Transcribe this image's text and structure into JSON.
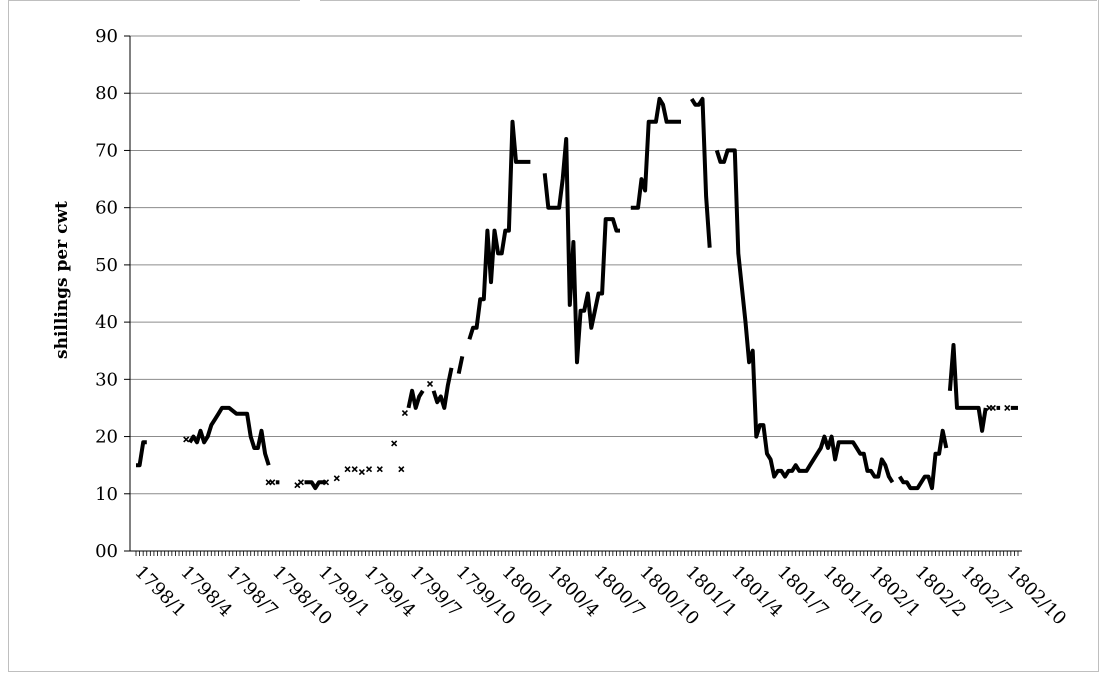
{
  "chart_data": {
    "type": "line",
    "title": "",
    "xlabel": "",
    "ylabel": "shillings per cwt",
    "ylim": [
      0,
      90
    ],
    "y_ticks": [
      "00",
      "10",
      "20",
      "30",
      "40",
      "50",
      "60",
      "70",
      "80",
      "90"
    ],
    "x_tick_labels": [
      "1798/1",
      "1798/4",
      "1798/7",
      "1798/10",
      "1799/1",
      "1799/4",
      "1799/7",
      "1799/10",
      "1800/1",
      "1800/4",
      "1800/7",
      "1800/10",
      "1801/1",
      "1801/4",
      "1801/7",
      "1801/10",
      "1802/1",
      "1802/2",
      "1802/7",
      "1802/10"
    ],
    "grid": "horizontal",
    "legend": "none",
    "colors": {
      "line": "#000000",
      "grid": "#8c8c8c"
    },
    "segments": [
      [
        [
          0,
          15
        ],
        [
          1,
          15
        ],
        [
          2,
          19
        ],
        [
          3,
          19
        ]
      ],
      [
        [
          15,
          19
        ],
        [
          16,
          20
        ],
        [
          17,
          19
        ],
        [
          18,
          21
        ],
        [
          19,
          19
        ],
        [
          20,
          20
        ],
        [
          21,
          22
        ],
        [
          22,
          23
        ],
        [
          23,
          24
        ],
        [
          24,
          25
        ],
        [
          25,
          25
        ],
        [
          26,
          25
        ],
        [
          28,
          24
        ],
        [
          29,
          24
        ],
        [
          30,
          24
        ],
        [
          31,
          24
        ],
        [
          32,
          20
        ],
        [
          33,
          18
        ],
        [
          34,
          18
        ],
        [
          35,
          21
        ],
        [
          36,
          17
        ],
        [
          37,
          15
        ]
      ],
      [
        [
          39,
          12
        ],
        [
          40,
          12
        ]
      ],
      [
        [
          47,
          12
        ],
        [
          48,
          12
        ],
        [
          49,
          12
        ],
        [
          50,
          11
        ],
        [
          51,
          12
        ],
        [
          52,
          12
        ],
        [
          53,
          12
        ]
      ],
      [
        [
          76,
          25
        ],
        [
          77,
          28
        ],
        [
          78,
          25
        ],
        [
          79,
          27
        ],
        [
          80,
          28
        ]
      ],
      [
        [
          83,
          28
        ],
        [
          84,
          26
        ],
        [
          85,
          27
        ],
        [
          86,
          25
        ],
        [
          87,
          29
        ],
        [
          88,
          32
        ]
      ],
      [
        [
          90,
          31
        ],
        [
          91,
          34
        ]
      ],
      [
        [
          93,
          37
        ],
        [
          94,
          39
        ],
        [
          95,
          39
        ],
        [
          96,
          44
        ],
        [
          97,
          44
        ],
        [
          98,
          56
        ],
        [
          99,
          47
        ],
        [
          100,
          56
        ],
        [
          101,
          52
        ],
        [
          102,
          52
        ],
        [
          103,
          56
        ],
        [
          104,
          56
        ],
        [
          105,
          75
        ],
        [
          106,
          68
        ],
        [
          107,
          68
        ],
        [
          108,
          68
        ],
        [
          109,
          68
        ],
        [
          110,
          68
        ]
      ],
      [
        [
          114,
          66
        ],
        [
          115,
          60
        ],
        [
          116,
          60
        ],
        [
          117,
          60
        ],
        [
          118,
          60
        ],
        [
          119,
          65
        ],
        [
          120,
          72
        ],
        [
          121,
          43
        ],
        [
          122,
          54
        ],
        [
          123,
          33
        ],
        [
          124,
          42
        ],
        [
          125,
          42
        ],
        [
          126,
          45
        ],
        [
          127,
          39
        ],
        [
          128,
          42
        ],
        [
          129,
          45
        ],
        [
          130,
          45
        ],
        [
          131,
          58
        ],
        [
          132,
          58
        ],
        [
          133,
          58
        ],
        [
          134,
          56
        ],
        [
          135,
          56
        ]
      ],
      [
        [
          138,
          60
        ],
        [
          139,
          60
        ],
        [
          140,
          60
        ],
        [
          141,
          65
        ],
        [
          142,
          63
        ],
        [
          143,
          75
        ],
        [
          144,
          75
        ],
        [
          145,
          75
        ],
        [
          146,
          79
        ],
        [
          147,
          78
        ],
        [
          148,
          75
        ],
        [
          149,
          75
        ],
        [
          150,
          75
        ],
        [
          151,
          75
        ],
        [
          152,
          75
        ]
      ],
      [
        [
          155,
          79
        ],
        [
          156,
          78
        ],
        [
          157,
          78
        ],
        [
          158,
          79
        ],
        [
          159,
          62
        ],
        [
          160,
          53
        ]
      ],
      [
        [
          162,
          70
        ],
        [
          163,
          68
        ],
        [
          164,
          68
        ],
        [
          165,
          70
        ],
        [
          166,
          70
        ],
        [
          167,
          70
        ],
        [
          168,
          52
        ],
        [
          169,
          46
        ],
        [
          170,
          40
        ],
        [
          171,
          33
        ],
        [
          172,
          35
        ],
        [
          173,
          20
        ],
        [
          174,
          22
        ],
        [
          175,
          22
        ],
        [
          176,
          17
        ],
        [
          177,
          16
        ],
        [
          178,
          13
        ],
        [
          179,
          14
        ],
        [
          180,
          14
        ],
        [
          181,
          13
        ],
        [
          182,
          14
        ],
        [
          183,
          14
        ],
        [
          184,
          15
        ],
        [
          185,
          14
        ],
        [
          186,
          14
        ],
        [
          187,
          14
        ],
        [
          188,
          15
        ],
        [
          189,
          16
        ],
        [
          190,
          17
        ],
        [
          191,
          18
        ],
        [
          192,
          20
        ],
        [
          193,
          18
        ],
        [
          194,
          20
        ],
        [
          195,
          16
        ],
        [
          196,
          19
        ],
        [
          197,
          19
        ],
        [
          198,
          19
        ],
        [
          199,
          19
        ],
        [
          200,
          19
        ],
        [
          201,
          18
        ],
        [
          202,
          17
        ],
        [
          203,
          17
        ],
        [
          204,
          14
        ],
        [
          205,
          14
        ],
        [
          206,
          13
        ],
        [
          207,
          13
        ],
        [
          208,
          16
        ],
        [
          209,
          15
        ],
        [
          210,
          13
        ],
        [
          211,
          12
        ]
      ],
      [
        [
          213,
          13
        ],
        [
          214,
          12
        ],
        [
          215,
          12
        ],
        [
          216,
          11
        ],
        [
          217,
          11
        ],
        [
          218,
          11
        ],
        [
          219,
          12
        ],
        [
          220,
          13
        ],
        [
          221,
          13
        ],
        [
          222,
          11
        ],
        [
          223,
          17
        ],
        [
          224,
          17
        ],
        [
          225,
          21
        ],
        [
          226,
          18
        ]
      ],
      [
        [
          227,
          28
        ],
        [
          228,
          36
        ],
        [
          229,
          25
        ],
        [
          230,
          25
        ],
        [
          231,
          25
        ],
        [
          232,
          25
        ],
        [
          233,
          25
        ],
        [
          234,
          25
        ],
        [
          235,
          25
        ],
        [
          236,
          21
        ],
        [
          237,
          25
        ]
      ],
      [
        [
          240,
          25
        ],
        [
          241,
          25
        ]
      ],
      [
        [
          244,
          25
        ],
        [
          245,
          25
        ],
        [
          246,
          25
        ]
      ]
    ],
    "markers": [
      [
        14,
        19.5
      ],
      [
        37,
        12
      ],
      [
        38,
        12
      ],
      [
        45,
        11.5
      ],
      [
        46,
        12
      ],
      [
        53,
        12
      ],
      [
        56,
        12.7
      ],
      [
        59,
        14.3
      ],
      [
        61,
        14.3
      ],
      [
        63,
        13.8
      ],
      [
        65,
        14.3
      ],
      [
        68,
        14.3
      ],
      [
        72,
        18.8
      ],
      [
        74,
        14.3
      ],
      [
        75,
        24.1
      ],
      [
        82,
        29.2
      ],
      [
        238,
        25
      ],
      [
        239,
        25
      ],
      [
        243,
        25
      ]
    ]
  }
}
